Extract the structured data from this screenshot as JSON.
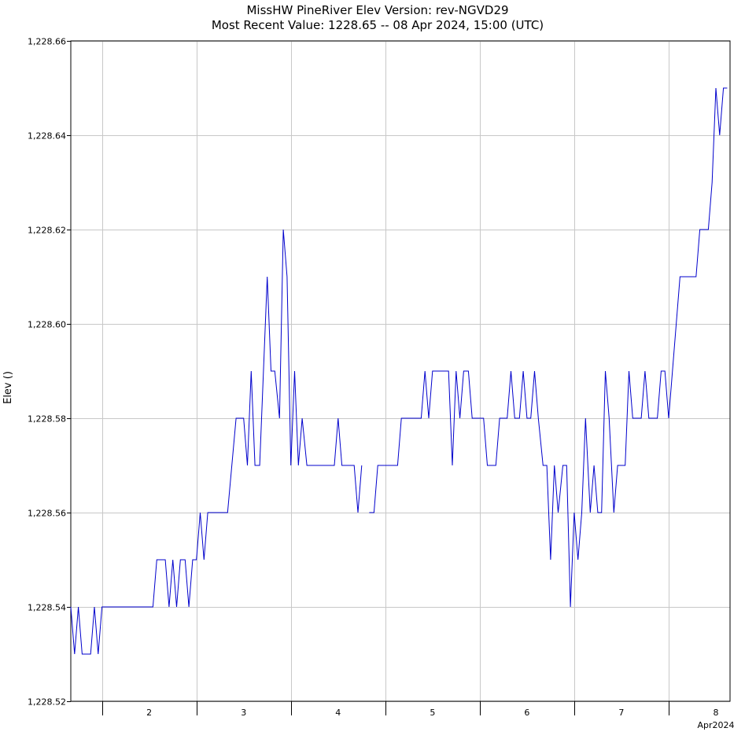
{
  "chart_data": {
    "type": "line",
    "title": "MissHW  PineRiver  Elev  Version: rev-NGVD29",
    "subtitle": "Most Recent Value: 1228.65  --  08 Apr 2024, 15:00 (UTC)",
    "ylabel": "Elev ()",
    "xlabel": "",
    "ylim": [
      1228.52,
      1228.66
    ],
    "yticks": [
      1228.52,
      1228.54,
      1228.56,
      1228.58,
      1228.6,
      1228.62,
      1228.64,
      1228.66
    ],
    "ytick_labels": [
      "1,228.52",
      "1,228.54",
      "1,228.56",
      "1,228.58",
      "1,228.60",
      "1,228.62",
      "1,228.64",
      "1,228.66"
    ],
    "xlim": [
      1.67,
      8.65
    ],
    "xticks": [
      2,
      3,
      4,
      5,
      6,
      7,
      8
    ],
    "xtick_labels": [
      "2",
      "3",
      "4",
      "5",
      "6",
      "7",
      "8"
    ],
    "x_unit_label": "Apr2024",
    "grid": true,
    "line_color": "#0000cc",
    "series": [
      {
        "points": [
          [
            1.67,
            1228.54
          ],
          [
            1.71,
            1228.53
          ],
          [
            1.75,
            1228.54
          ],
          [
            1.79,
            1228.53
          ],
          [
            1.88,
            1228.53
          ],
          [
            1.92,
            1228.54
          ],
          [
            1.96,
            1228.53
          ],
          [
            2.0,
            1228.54
          ],
          [
            2.54,
            1228.54
          ],
          [
            2.58,
            1228.55
          ],
          [
            2.67,
            1228.55
          ],
          [
            2.71,
            1228.54
          ],
          [
            2.75,
            1228.55
          ],
          [
            2.79,
            1228.54
          ],
          [
            2.83,
            1228.55
          ],
          [
            2.88,
            1228.55
          ],
          [
            2.92,
            1228.54
          ],
          [
            2.96,
            1228.55
          ],
          [
            3.0,
            1228.55
          ],
          [
            3.04,
            1228.56
          ],
          [
            3.08,
            1228.55
          ],
          [
            3.12,
            1228.56
          ],
          [
            3.33,
            1228.56
          ],
          [
            3.42,
            1228.58
          ],
          [
            3.5,
            1228.58
          ],
          [
            3.54,
            1228.57
          ],
          [
            3.58,
            1228.59
          ],
          [
            3.62,
            1228.57
          ],
          [
            3.67,
            1228.57
          ],
          [
            3.75,
            1228.61
          ],
          [
            3.79,
            1228.59
          ],
          [
            3.83,
            1228.59
          ],
          [
            3.88,
            1228.58
          ],
          [
            3.92,
            1228.62
          ],
          [
            3.96,
            1228.61
          ],
          [
            4.0,
            1228.57
          ],
          [
            4.04,
            1228.59
          ],
          [
            4.08,
            1228.57
          ],
          [
            4.12,
            1228.58
          ],
          [
            4.17,
            1228.57
          ],
          [
            4.46,
            1228.57
          ],
          [
            4.5,
            1228.58
          ],
          [
            4.54,
            1228.57
          ],
          [
            4.67,
            1228.57
          ],
          [
            4.71,
            1228.56
          ],
          [
            4.75,
            1228.57
          ],
          null,
          [
            4.83,
            1228.56
          ],
          [
            4.88,
            1228.56
          ],
          [
            4.92,
            1228.57
          ],
          [
            5.04,
            1228.57
          ],
          [
            5.13,
            1228.57
          ],
          [
            5.17,
            1228.58
          ],
          [
            5.38,
            1228.58
          ],
          [
            5.42,
            1228.59
          ],
          [
            5.46,
            1228.58
          ],
          [
            5.5,
            1228.59
          ],
          [
            5.67,
            1228.59
          ],
          [
            5.71,
            1228.57
          ],
          [
            5.75,
            1228.59
          ],
          [
            5.79,
            1228.58
          ],
          [
            5.83,
            1228.59
          ],
          [
            5.88,
            1228.59
          ],
          [
            5.92,
            1228.58
          ],
          [
            6.04,
            1228.58
          ],
          [
            6.08,
            1228.57
          ],
          [
            6.17,
            1228.57
          ],
          [
            6.21,
            1228.58
          ],
          [
            6.29,
            1228.58
          ],
          [
            6.33,
            1228.59
          ],
          [
            6.37,
            1228.58
          ],
          [
            6.42,
            1228.58
          ],
          [
            6.46,
            1228.59
          ],
          [
            6.5,
            1228.58
          ],
          [
            6.54,
            1228.58
          ],
          [
            6.58,
            1228.59
          ],
          [
            6.62,
            1228.58
          ],
          [
            6.67,
            1228.57
          ],
          [
            6.71,
            1228.57
          ],
          [
            6.75,
            1228.55
          ],
          [
            6.79,
            1228.57
          ],
          [
            6.83,
            1228.56
          ],
          [
            6.88,
            1228.57
          ],
          [
            6.92,
            1228.57
          ],
          [
            6.96,
            1228.54
          ],
          [
            7.0,
            1228.56
          ],
          [
            7.04,
            1228.55
          ],
          [
            7.08,
            1228.56
          ],
          [
            7.12,
            1228.58
          ],
          [
            7.17,
            1228.56
          ],
          [
            7.21,
            1228.57
          ],
          [
            7.25,
            1228.56
          ],
          [
            7.29,
            1228.56
          ],
          [
            7.33,
            1228.59
          ],
          [
            7.37,
            1228.58
          ],
          [
            7.42,
            1228.56
          ],
          [
            7.46,
            1228.57
          ],
          [
            7.54,
            1228.57
          ],
          [
            7.58,
            1228.59
          ],
          [
            7.62,
            1228.58
          ],
          [
            7.71,
            1228.58
          ],
          [
            7.75,
            1228.59
          ],
          [
            7.79,
            1228.58
          ],
          [
            7.88,
            1228.58
          ],
          [
            7.92,
            1228.59
          ],
          [
            7.96,
            1228.59
          ],
          [
            8.0,
            1228.58
          ],
          [
            8.08,
            1228.6
          ],
          [
            8.12,
            1228.61
          ],
          [
            8.29,
            1228.61
          ],
          [
            8.33,
            1228.62
          ],
          [
            8.42,
            1228.62
          ],
          [
            8.46,
            1228.63
          ],
          [
            8.5,
            1228.65
          ],
          [
            8.54,
            1228.64
          ],
          [
            8.58,
            1228.65
          ],
          [
            8.62,
            1228.65
          ]
        ]
      }
    ]
  }
}
